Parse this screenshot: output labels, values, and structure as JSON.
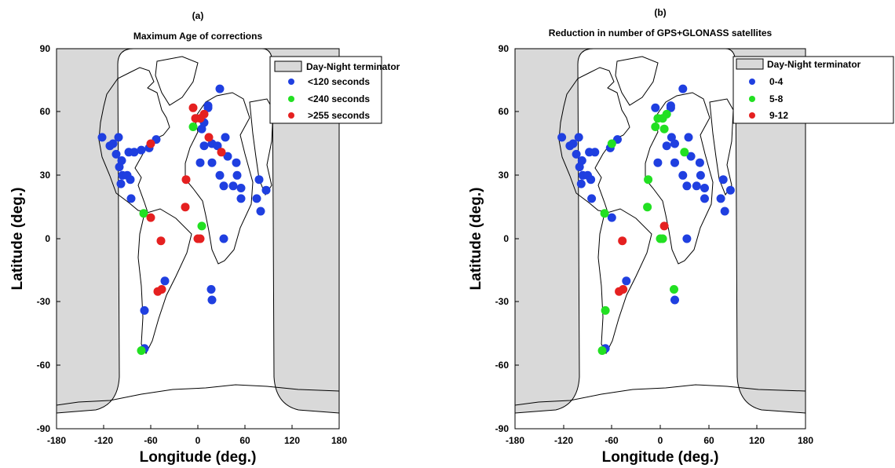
{
  "chart_data": [
    {
      "type": "scatter",
      "panel_label": "(a)",
      "title": "Maximum Age of corrections",
      "xlabel": "Longitude  (deg.)",
      "ylabel": "Latitude  (deg.)",
      "xlim": [
        -180,
        180
      ],
      "ylim": [
        -90,
        90
      ],
      "xticks": [
        "-180",
        "-120",
        "-60",
        "0",
        "60",
        "120",
        "180"
      ],
      "yticks": [
        "-90",
        "-60",
        "-30",
        "0",
        "30",
        "60",
        "90"
      ],
      "legend_position": "top-right",
      "legend": [
        {
          "label": "Day-Night terminator",
          "kind": "box",
          "color": "#d9d9d9"
        },
        {
          "label": "<120 seconds",
          "kind": "dot",
          "color": "#1f3fe0"
        },
        {
          "label": "<240 seconds",
          "kind": "dot",
          "color": "#22e022"
        },
        {
          "label": ">255 seconds",
          "kind": "dot",
          "color": "#e52020"
        }
      ],
      "series": [
        {
          "name": "<120 seconds",
          "color": "#1f3fe0",
          "points": [
            [
              -122,
              48
            ],
            [
              -112,
              44
            ],
            [
              -108,
              45
            ],
            [
              -104,
              40
            ],
            [
              -101,
              48
            ],
            [
              -100,
              34
            ],
            [
              -96,
              30
            ],
            [
              -97,
              37
            ],
            [
              -98,
              26
            ],
            [
              -90,
              30
            ],
            [
              -88,
              41
            ],
            [
              -86,
              28
            ],
            [
              -85,
              19
            ],
            [
              -81,
              41
            ],
            [
              -72,
              42
            ],
            [
              -62,
              43
            ],
            [
              -53,
              47
            ],
            [
              3,
              36
            ],
            [
              5,
              52
            ],
            [
              8,
              44
            ],
            [
              8,
              55
            ],
            [
              13,
              63
            ],
            [
              13,
              62
            ],
            [
              18,
              36
            ],
            [
              18,
              45
            ],
            [
              25,
              44
            ],
            [
              28,
              71
            ],
            [
              28,
              30
            ],
            [
              35,
              48
            ],
            [
              33,
              25
            ],
            [
              38,
              39
            ],
            [
              45,
              25
            ],
            [
              49,
              36
            ],
            [
              50,
              30
            ],
            [
              55,
              24
            ],
            [
              55,
              19
            ],
            [
              75,
              19
            ],
            [
              78,
              28
            ],
            [
              80,
              13
            ],
            [
              87,
              23
            ],
            [
              33,
              0
            ],
            [
              17,
              -24
            ],
            [
              18,
              -29
            ],
            [
              -42,
              -20
            ],
            [
              -68,
              -34
            ],
            [
              -68,
              -52
            ]
          ]
        },
        {
          "name": "<240 seconds",
          "color": "#22e022",
          "points": [
            [
              -6,
              53
            ],
            [
              5,
              6
            ],
            [
              -69,
              12
            ],
            [
              -72,
              -53
            ]
          ]
        },
        {
          "name": ">255 seconds",
          "color": "#e52020",
          "points": [
            [
              -6,
              62
            ],
            [
              -3,
              57
            ],
            [
              3,
              57
            ],
            [
              8,
              59
            ],
            [
              14,
              48
            ],
            [
              30,
              41
            ],
            [
              -15,
              28
            ],
            [
              -16,
              15
            ],
            [
              -60,
              45
            ],
            [
              -60,
              10
            ],
            [
              -47,
              -1
            ],
            [
              0,
              0
            ],
            [
              3,
              0
            ],
            [
              -46,
              -24
            ],
            [
              -51,
              -25
            ]
          ]
        }
      ]
    },
    {
      "type": "scatter",
      "panel_label": "(b)",
      "title": "Reduction in number of GPS+GLONASS satellites",
      "xlabel": "Longitude  (deg.)",
      "ylabel": "Latitude  (deg.)",
      "xlim": [
        -180,
        180
      ],
      "ylim": [
        -90,
        90
      ],
      "xticks": [
        "-180",
        "-120",
        "-60",
        "0",
        "60",
        "120",
        "180"
      ],
      "yticks": [
        "-90",
        "-60",
        "-30",
        "0",
        "30",
        "60",
        "90"
      ],
      "legend_position": "top-right",
      "legend": [
        {
          "label": "Day-Night terminator",
          "kind": "box",
          "color": "#d9d9d9"
        },
        {
          "label": "0-4",
          "kind": "dot",
          "color": "#1f3fe0"
        },
        {
          "label": "5-8",
          "kind": "dot",
          "color": "#22e022"
        },
        {
          "label": "9-12",
          "kind": "dot",
          "color": "#e52020"
        }
      ],
      "series": [
        {
          "name": "0-4",
          "color": "#1f3fe0",
          "points": [
            [
              -122,
              48
            ],
            [
              -112,
              44
            ],
            [
              -108,
              45
            ],
            [
              -104,
              40
            ],
            [
              -101,
              48
            ],
            [
              -100,
              34
            ],
            [
              -96,
              30
            ],
            [
              -97,
              37
            ],
            [
              -98,
              26
            ],
            [
              -90,
              30
            ],
            [
              -88,
              41
            ],
            [
              -86,
              28
            ],
            [
              -85,
              19
            ],
            [
              -81,
              41
            ],
            [
              -62,
              43
            ],
            [
              -53,
              47
            ],
            [
              -6,
              62
            ],
            [
              -3,
              36
            ],
            [
              8,
              44
            ],
            [
              13,
              63
            ],
            [
              13,
              62
            ],
            [
              14,
              48
            ],
            [
              18,
              36
            ],
            [
              18,
              45
            ],
            [
              28,
              71
            ],
            [
              28,
              30
            ],
            [
              35,
              48
            ],
            [
              33,
              25
            ],
            [
              38,
              39
            ],
            [
              45,
              25
            ],
            [
              49,
              36
            ],
            [
              50,
              30
            ],
            [
              55,
              24
            ],
            [
              55,
              19
            ],
            [
              75,
              19
            ],
            [
              78,
              28
            ],
            [
              80,
              13
            ],
            [
              87,
              23
            ],
            [
              33,
              0
            ],
            [
              18,
              -29
            ],
            [
              -42,
              -20
            ],
            [
              -68,
              -52
            ],
            [
              -60,
              10
            ]
          ]
        },
        {
          "name": "5-8",
          "color": "#22e022",
          "points": [
            [
              -6,
              53
            ],
            [
              -3,
              57
            ],
            [
              3,
              57
            ],
            [
              5,
              52
            ],
            [
              8,
              59
            ],
            [
              30,
              41
            ],
            [
              -15,
              28
            ],
            [
              -16,
              15
            ],
            [
              -60,
              45
            ],
            [
              -69,
              12
            ],
            [
              0,
              0
            ],
            [
              3,
              0
            ],
            [
              17,
              -24
            ],
            [
              -68,
              -34
            ],
            [
              -72,
              -53
            ]
          ]
        },
        {
          "name": "9-12",
          "color": "#e52020",
          "points": [
            [
              5,
              6
            ],
            [
              -47,
              -1
            ],
            [
              -46,
              -24
            ],
            [
              -51,
              -25
            ]
          ]
        }
      ]
    }
  ]
}
